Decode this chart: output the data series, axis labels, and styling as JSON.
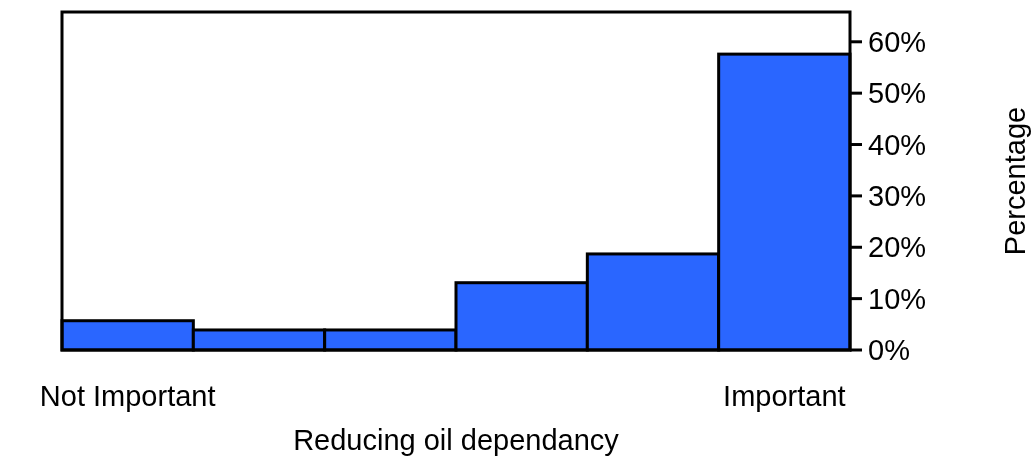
{
  "chart_data": {
    "type": "bar",
    "xlabel": "Reducing oil dependancy",
    "ylabel": "Percentage",
    "categories": [
      "Not Important",
      null,
      null,
      null,
      null,
      "Important"
    ],
    "values": [
      5.7,
      3.9,
      3.9,
      13.1,
      18.7,
      57.6
    ],
    "color": "#2a66ff",
    "ylim": [
      0,
      65.8
    ],
    "yticks": [
      {
        "value": 0,
        "label": "0%"
      },
      {
        "value": 10,
        "label": "10%"
      },
      {
        "value": 20,
        "label": "20%"
      },
      {
        "value": 30,
        "label": "30%"
      },
      {
        "value": 40,
        "label": "40%"
      },
      {
        "value": 50,
        "label": "50%"
      },
      {
        "value": 60,
        "label": "60%"
      }
    ]
  }
}
